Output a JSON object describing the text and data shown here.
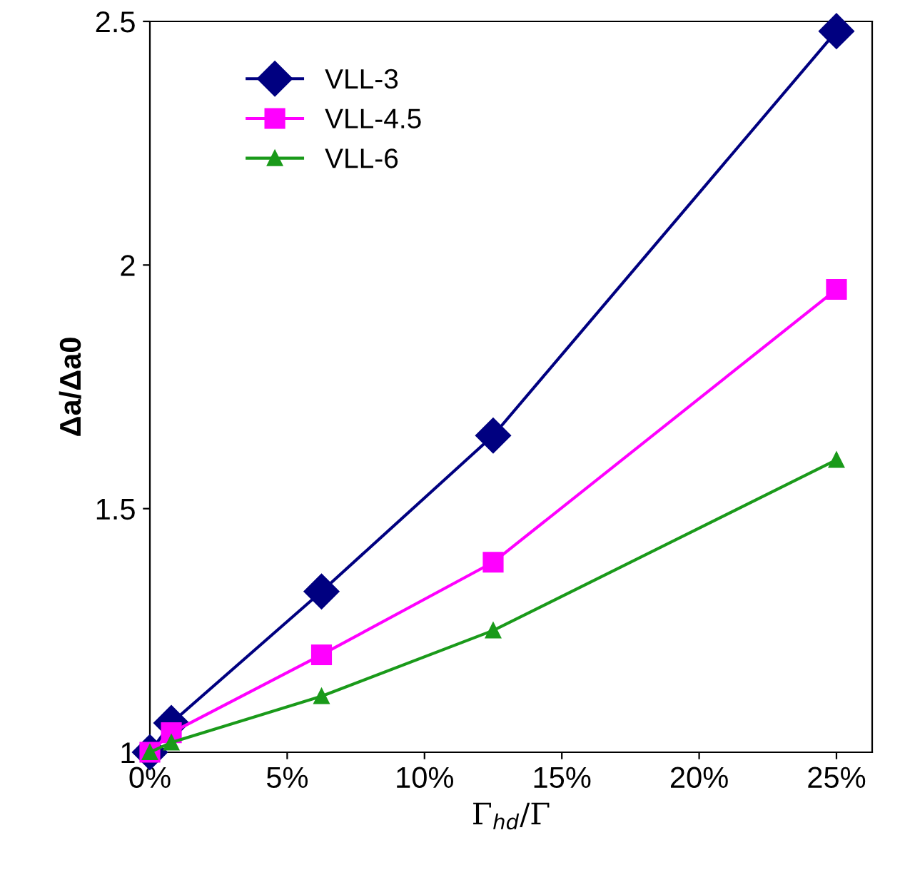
{
  "chart_data": {
    "type": "line",
    "xlabel": "Γ$_{hd}$/Γ",
    "ylabel": "Δa/Δa0",
    "x": [
      0,
      0.78125,
      6.25,
      12.5,
      25
    ],
    "series": [
      {
        "name": "VLL-3",
        "color": "#000080",
        "marker": "diamond",
        "values": [
          1.0,
          1.06,
          1.33,
          1.65,
          2.48
        ]
      },
      {
        "name": "VLL-4.5",
        "color": "#ff00ff",
        "marker": "square",
        "values": [
          1.0,
          1.04,
          1.2,
          1.39,
          1.95
        ]
      },
      {
        "name": "VLL-6",
        "color": "#1a9a1a",
        "marker": "triangle",
        "values": [
          1.0,
          1.02,
          1.115,
          1.25,
          1.6
        ]
      }
    ],
    "xlim": [
      0,
      26.3
    ],
    "ylim": [
      1,
      2.5
    ],
    "xticks": [
      {
        "value": 0,
        "label": "0%"
      },
      {
        "value": 5,
        "label": "5%"
      },
      {
        "value": 10,
        "label": "10%"
      },
      {
        "value": 15,
        "label": "15%"
      },
      {
        "value": 20,
        "label": "20%"
      },
      {
        "value": 25,
        "label": "25%"
      }
    ],
    "yticks": [
      {
        "value": 1,
        "label": "1"
      },
      {
        "value": 1.5,
        "label": "1.5"
      },
      {
        "value": 2,
        "label": "2"
      },
      {
        "value": 2.5,
        "label": "2.5"
      }
    ],
    "legend": "top left",
    "grid": false,
    "line_style": "solid"
  }
}
